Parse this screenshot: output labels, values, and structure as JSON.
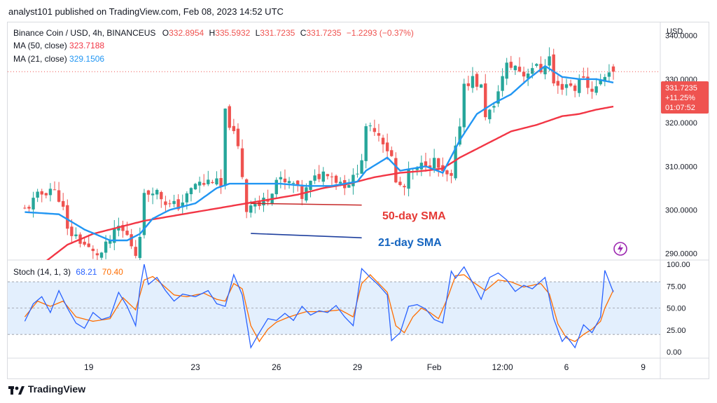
{
  "header": {
    "publisher_line": "analyst101 published on TradingView.com, Feb 08, 2023 14:52 UTC"
  },
  "legend": {
    "symbol": "Binance Coin / USD, 4h, BINANCEUS",
    "o_label": "O",
    "o_value": "332.8954",
    "h_label": "H",
    "h_value": "335.5932",
    "l_label": "L",
    "l_value": "331.7235",
    "c_label": "C",
    "c_value": "331.7235",
    "change": "−1.2293 (−0.37%)",
    "ma50_label": "MA (50, close)",
    "ma50_value": "323.7188",
    "ma21_label": "MA (21, close)",
    "ma21_value": "329.1506"
  },
  "stoch_legend": {
    "label": "Stoch (14, 1, 3)",
    "k_value": "68.21",
    "d_value": "70.40"
  },
  "price_badge": {
    "price": "331.7235",
    "change_pct": "+11.25%",
    "countdown": "01:07:52"
  },
  "annotations": {
    "sma50": "50-day SMA",
    "sma21": "21-day SMA"
  },
  "footer": {
    "brand": "TradingView"
  },
  "colors": {
    "up": "#26a69a",
    "down": "#ef5350",
    "ma21": "#2196f3",
    "ma50": "#f23645",
    "k": "#2962ff",
    "d": "#ff6d00",
    "band": "#e3effd",
    "annotation_red": "#e53935",
    "annotation_blue": "#1565c0",
    "badge": "#ef5350"
  },
  "chart_data": {
    "type": "candlestick",
    "currency": "USD",
    "price_axis": {
      "min": 288.5,
      "max": 343,
      "ticks": [
        "340.0000",
        "330.0000",
        "320.0000",
        "310.0000",
        "300.0000",
        "290.0000"
      ],
      "tick_values": [
        340,
        330,
        320,
        310,
        300,
        290
      ]
    },
    "time_axis_labels": [
      {
        "label": "19",
        "bar": 15
      },
      {
        "label": "23",
        "bar": 40
      },
      {
        "label": "26",
        "bar": 59
      },
      {
        "label": "29",
        "bar": 78
      },
      {
        "label": "Feb",
        "bar": 96
      },
      {
        "label": "12:00",
        "bar": 112
      },
      {
        "label": "6",
        "bar": 127
      },
      {
        "label": "9",
        "bar": 145
      }
    ],
    "anchors": [
      [
        0,
        300
      ],
      [
        3,
        303
      ],
      [
        6,
        305
      ],
      [
        8,
        303
      ],
      [
        9,
        300
      ],
      [
        10,
        295
      ],
      [
        12,
        294
      ],
      [
        14,
        292
      ],
      [
        16,
        290
      ],
      [
        18,
        290
      ],
      [
        20,
        293
      ],
      [
        22,
        296
      ],
      [
        24,
        294
      ],
      [
        26,
        290
      ],
      [
        27,
        295
      ],
      [
        28,
        303
      ],
      [
        30,
        305
      ],
      [
        32,
        303
      ],
      [
        34,
        301
      ],
      [
        36,
        301
      ],
      [
        38,
        303
      ],
      [
        40,
        306
      ],
      [
        42,
        306
      ],
      [
        44,
        307
      ],
      [
        46,
        305
      ],
      [
        47,
        322
      ],
      [
        48,
        320
      ],
      [
        50,
        314
      ],
      [
        51,
        308
      ],
      [
        52,
        300
      ],
      [
        53,
        302
      ],
      [
        55,
        301
      ],
      [
        57,
        303
      ],
      [
        59,
        307
      ],
      [
        61,
        306
      ],
      [
        63,
        306
      ],
      [
        65,
        303
      ],
      [
        67,
        306
      ],
      [
        69,
        308
      ],
      [
        71,
        309
      ],
      [
        73,
        307
      ],
      [
        75,
        306
      ],
      [
        77,
        307
      ],
      [
        79,
        312
      ],
      [
        80,
        318
      ],
      [
        82,
        319
      ],
      [
        84,
        316
      ],
      [
        86,
        312
      ],
      [
        87,
        306
      ],
      [
        89,
        305
      ],
      [
        90,
        308
      ],
      [
        92,
        309
      ],
      [
        94,
        311
      ],
      [
        96,
        311
      ],
      [
        98,
        308
      ],
      [
        100,
        307
      ],
      [
        102,
        320
      ],
      [
        103,
        329
      ],
      [
        105,
        330
      ],
      [
        107,
        328
      ],
      [
        108,
        322
      ],
      [
        110,
        323
      ],
      [
        111,
        328
      ],
      [
        113,
        333
      ],
      [
        115,
        333
      ],
      [
        117,
        331
      ],
      [
        119,
        333
      ],
      [
        121,
        332
      ],
      [
        123,
        335
      ],
      [
        124,
        329
      ],
      [
        125,
        328
      ],
      [
        127,
        329
      ],
      [
        129,
        328
      ],
      [
        131,
        331
      ],
      [
        132,
        328
      ],
      [
        134,
        328
      ],
      [
        136,
        331
      ],
      [
        137,
        332
      ],
      [
        138,
        331.7
      ]
    ],
    "ma21_anchors": [
      [
        0,
        299.5
      ],
      [
        8,
        299
      ],
      [
        14,
        295.5
      ],
      [
        20,
        293
      ],
      [
        24,
        293
      ],
      [
        27,
        294.5
      ],
      [
        30,
        298
      ],
      [
        34,
        300
      ],
      [
        40,
        301.5
      ],
      [
        45,
        305
      ],
      [
        48,
        306
      ],
      [
        50,
        306
      ],
      [
        52,
        306
      ],
      [
        56,
        306
      ],
      [
        60,
        306
      ],
      [
        66,
        305.5
      ],
      [
        72,
        305.5
      ],
      [
        78,
        306.5
      ],
      [
        80,
        309
      ],
      [
        85,
        312
      ],
      [
        88,
        309
      ],
      [
        94,
        310
      ],
      [
        98,
        308.5
      ],
      [
        102,
        316
      ],
      [
        106,
        322
      ],
      [
        110,
        324.5
      ],
      [
        114,
        326.5
      ],
      [
        118,
        330
      ],
      [
        122,
        333
      ],
      [
        126,
        330.5
      ],
      [
        130,
        330
      ],
      [
        134,
        330
      ],
      [
        138,
        329.2
      ]
    ],
    "ma50_anchors": [
      [
        4,
        287.5
      ],
      [
        10,
        292
      ],
      [
        16,
        294.5
      ],
      [
        22,
        296
      ],
      [
        28,
        297.5
      ],
      [
        34,
        298.5
      ],
      [
        40,
        299.5
      ],
      [
        46,
        300.5
      ],
      [
        52,
        301.5
      ],
      [
        58,
        302.5
      ],
      [
        64,
        303.5
      ],
      [
        70,
        305
      ],
      [
        76,
        306
      ],
      [
        82,
        307.5
      ],
      [
        88,
        308.5
      ],
      [
        94,
        309
      ],
      [
        98,
        309.5
      ],
      [
        102,
        312
      ],
      [
        108,
        315
      ],
      [
        114,
        318
      ],
      [
        120,
        319.5
      ],
      [
        126,
        321.5
      ],
      [
        130,
        322
      ],
      [
        134,
        323
      ],
      [
        138,
        323.7
      ]
    ],
    "bars_total": 139,
    "visible_bar_span": [
      -4,
      149
    ],
    "stoch_axis": {
      "min": -7,
      "max": 104,
      "ticks": [
        "100.00",
        "75.00",
        "50.00",
        "25.00",
        "0.00"
      ],
      "tick_values": [
        100,
        75,
        50,
        25,
        0
      ],
      "upper_band": 80,
      "lower_band": 20
    },
    "stoch_k_anchors": [
      [
        0,
        35
      ],
      [
        2,
        55
      ],
      [
        4,
        63
      ],
      [
        6,
        45
      ],
      [
        8,
        70
      ],
      [
        10,
        50
      ],
      [
        12,
        33
      ],
      [
        14,
        27
      ],
      [
        16,
        45
      ],
      [
        18,
        37
      ],
      [
        20,
        40
      ],
      [
        22,
        68
      ],
      [
        24,
        52
      ],
      [
        26,
        30
      ],
      [
        27,
        72
      ],
      [
        28,
        100
      ],
      [
        29,
        77
      ],
      [
        31,
        85
      ],
      [
        33,
        70
      ],
      [
        35,
        58
      ],
      [
        37,
        66
      ],
      [
        40,
        63
      ],
      [
        43,
        70
      ],
      [
        45,
        55
      ],
      [
        47,
        52
      ],
      [
        49,
        88
      ],
      [
        51,
        65
      ],
      [
        53,
        5
      ],
      [
        55,
        22
      ],
      [
        57,
        38
      ],
      [
        59,
        36
      ],
      [
        61,
        44
      ],
      [
        63,
        36
      ],
      [
        65,
        52
      ],
      [
        67,
        42
      ],
      [
        69,
        47
      ],
      [
        71,
        45
      ],
      [
        73,
        53
      ],
      [
        75,
        40
      ],
      [
        77,
        30
      ],
      [
        79,
        95
      ],
      [
        81,
        85
      ],
      [
        83,
        76
      ],
      [
        85,
        65
      ],
      [
        86,
        13
      ],
      [
        88,
        22
      ],
      [
        90,
        52
      ],
      [
        92,
        54
      ],
      [
        94,
        49
      ],
      [
        96,
        37
      ],
      [
        98,
        33
      ],
      [
        100,
        92
      ],
      [
        101,
        84
      ],
      [
        103,
        97
      ],
      [
        105,
        79
      ],
      [
        107,
        60
      ],
      [
        109,
        85
      ],
      [
        111,
        90
      ],
      [
        113,
        82
      ],
      [
        115,
        69
      ],
      [
        117,
        76
      ],
      [
        119,
        72
      ],
      [
        122,
        85
      ],
      [
        124,
        38
      ],
      [
        126,
        12
      ],
      [
        127,
        18
      ],
      [
        129,
        5
      ],
      [
        131,
        31
      ],
      [
        133,
        22
      ],
      [
        135,
        40
      ],
      [
        136,
        93
      ],
      [
        138,
        68.2
      ]
    ],
    "stoch_d_anchors": [
      [
        0,
        40
      ],
      [
        3,
        58
      ],
      [
        6,
        52
      ],
      [
        9,
        58
      ],
      [
        12,
        40
      ],
      [
        16,
        35
      ],
      [
        20,
        38
      ],
      [
        23,
        62
      ],
      [
        26,
        48
      ],
      [
        28,
        82
      ],
      [
        30,
        86
      ],
      [
        32,
        78
      ],
      [
        35,
        65
      ],
      [
        38,
        63
      ],
      [
        42,
        67
      ],
      [
        45,
        60
      ],
      [
        47,
        58
      ],
      [
        49,
        78
      ],
      [
        51,
        72
      ],
      [
        53,
        30
      ],
      [
        55,
        12
      ],
      [
        57,
        26
      ],
      [
        59,
        34
      ],
      [
        62,
        40
      ],
      [
        66,
        46
      ],
      [
        70,
        46
      ],
      [
        74,
        48
      ],
      [
        77,
        40
      ],
      [
        79,
        78
      ],
      [
        81,
        88
      ],
      [
        83,
        78
      ],
      [
        85,
        68
      ],
      [
        87,
        30
      ],
      [
        89,
        22
      ],
      [
        91,
        40
      ],
      [
        93,
        50
      ],
      [
        95,
        45
      ],
      [
        97,
        38
      ],
      [
        99,
        60
      ],
      [
        101,
        87
      ],
      [
        103,
        88
      ],
      [
        105,
        80
      ],
      [
        108,
        70
      ],
      [
        111,
        82
      ],
      [
        114,
        80
      ],
      [
        117,
        74
      ],
      [
        121,
        78
      ],
      [
        123,
        66
      ],
      [
        125,
        32
      ],
      [
        127,
        16
      ],
      [
        129,
        12
      ],
      [
        131,
        20
      ],
      [
        133,
        26
      ],
      [
        135,
        35
      ],
      [
        136,
        50
      ],
      [
        138,
        70.4
      ]
    ]
  }
}
